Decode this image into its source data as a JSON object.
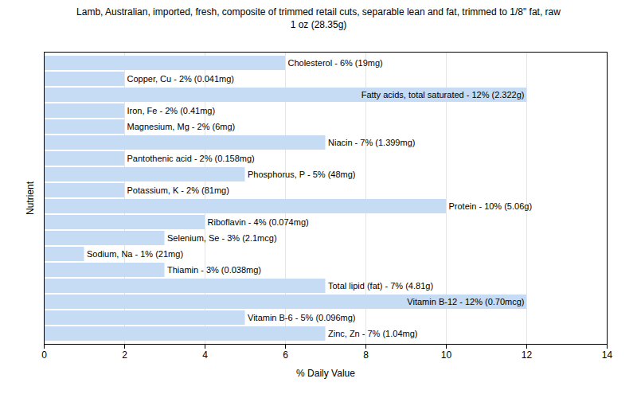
{
  "chart_data": {
    "type": "bar",
    "orientation": "horizontal",
    "title": "Lamb, Australian, imported, fresh, composite of trimmed retail cuts, separable lean and fat, trimmed to 1/8\" fat, raw",
    "subtitle": "1 oz (28.35g)",
    "x_label": "% Daily Value",
    "y_label": "Nutrient",
    "categories": [
      "Cholesterol",
      "Copper, Cu",
      "Fatty acids, total saturated",
      "Iron, Fe",
      "Magnesium, Mg",
      "Niacin",
      "Pantothenic acid",
      "Phosphorus, P",
      "Potassium, K",
      "Protein",
      "Riboflavin",
      "Selenium, Se",
      "Sodium, Na",
      "Thiamin",
      "Total lipid (fat)",
      "Vitamin B-12",
      "Vitamin B-6",
      "Zinc, Zn"
    ],
    "values": [
      6,
      2,
      12,
      2,
      2,
      7,
      2,
      5,
      2,
      10,
      4,
      3,
      1,
      3,
      7,
      12,
      5,
      7
    ],
    "value_labels": [
      "Cholesterol - 6% (19mg)",
      "Copper, Cu - 2% (0.041mg)",
      "Fatty acids, total saturated - 12% (2.322g)",
      "Iron, Fe - 2% (0.41mg)",
      "Magnesium, Mg - 2% (6mg)",
      "Niacin - 7% (1.399mg)",
      "Pantothenic acid - 2% (0.158mg)",
      "Phosphorus, P - 5% (48mg)",
      "Potassium, K - 2% (81mg)",
      "Protein - 10% (5.06g)",
      "Riboflavin - 4% (0.074mg)",
      "Selenium, Se - 3% (2.1mcg)",
      "Sodium, Na - 1% (21mg)",
      "Thiamin - 3% (0.038mg)",
      "Total lipid (fat) - 7% (4.81g)",
      "Vitamin B-12 - 12% (0.70mcg)",
      "Vitamin B-6 - 5% (0.096mg)",
      "Zinc, Zn - 7% (1.04mg)"
    ],
    "data_labels": true,
    "tick_labels": "x",
    "color": "#c6dcf5",
    "xlim": [
      0,
      14
    ],
    "xticks": [
      0,
      2,
      4,
      6,
      8,
      10,
      12,
      14
    ],
    "grid": true
  }
}
